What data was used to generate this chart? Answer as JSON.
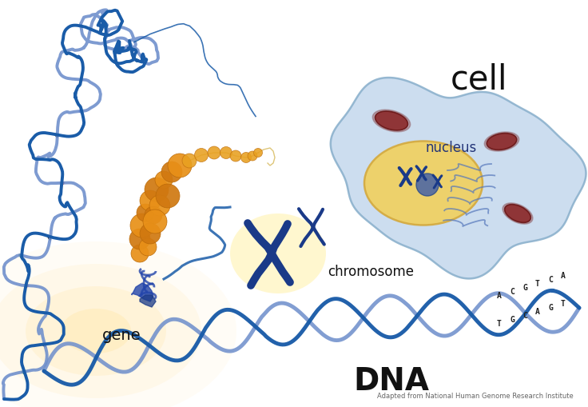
{
  "labels": {
    "cell": "cell",
    "nucleus": "nucleus",
    "chromosome": "chromosome",
    "gene": "gene",
    "dna": "DNA",
    "attribution": "Adapted from National Human Genome Research Institute"
  },
  "colors": {
    "background": "#ffffff",
    "cell_fill": "#c5d9ed",
    "cell_border": "#8ab0cc",
    "nucleus_fill": "#f0d060",
    "nucleus_border": "#c8a830",
    "dna_strand1": "#1a5ca8",
    "dna_strand2": "#7090cc",
    "dna_bar_red": "#cc2222",
    "dna_bar_green": "#228822",
    "dna_bar_black": "#111111",
    "dna_bar_blue": "#2244cc",
    "gene_glow": "#fff8c0",
    "histone_color": "#e89018",
    "histone_dark": "#b86808",
    "mitochondria_fill": "#882222",
    "mitochondria_edge": "#661111",
    "chromosome_color": "#1a3a88",
    "nucleolus": "#4466aa",
    "text_dark": "#111111",
    "chromatin_color": "#4477bb"
  },
  "figsize": [
    7.36,
    5.1
  ],
  "dpi": 100
}
